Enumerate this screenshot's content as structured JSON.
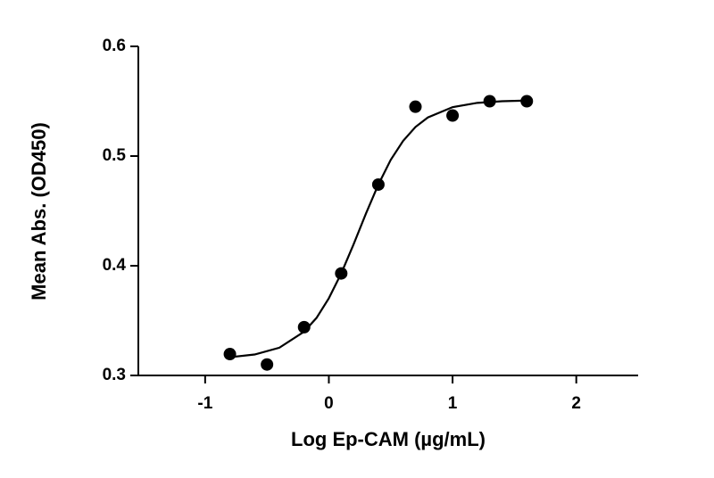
{
  "chart_data": {
    "type": "scatter",
    "x_label": "Log Ep-CAM (µg/mL)",
    "y_label": "Mean  Abs. (OD450)",
    "x": [
      -0.8,
      -0.5,
      -0.2,
      0.1,
      0.4,
      0.7,
      1.0,
      1.3,
      1.6
    ],
    "values": [
      0.3195,
      0.31,
      0.344,
      0.393,
      0.474,
      0.545,
      0.537,
      0.55,
      0.55
    ],
    "fit_x": [
      -0.8,
      -0.6,
      -0.4,
      -0.2,
      -0.1,
      0,
      0.1,
      0.2,
      0.3,
      0.4,
      0.5,
      0.6,
      0.7,
      0.8,
      1.0,
      1.2,
      1.4,
      1.6
    ],
    "fit_values": [
      0.3166,
      0.3191,
      0.3253,
      0.3399,
      0.3524,
      0.3704,
      0.393,
      0.4196,
      0.4476,
      0.474,
      0.4965,
      0.5138,
      0.5265,
      0.5352,
      0.5446,
      0.5485,
      0.55,
      0.5506
    ],
    "color": "#000000",
    "xlim": [
      -1.54,
      2.5
    ],
    "xticks": [
      -1,
      0,
      1,
      2
    ],
    "ylim": [
      0.3,
      0.6
    ],
    "yticks": [
      0.3,
      0.4,
      0.5,
      0.6
    ]
  }
}
